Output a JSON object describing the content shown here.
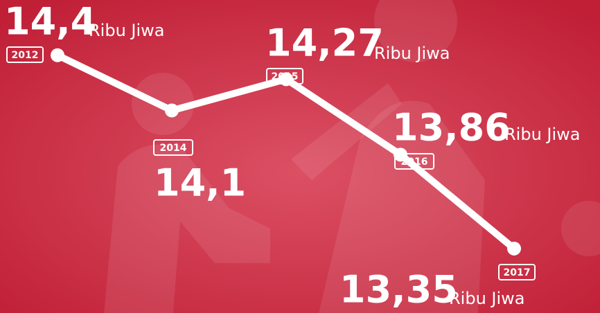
{
  "chart_data": {
    "type": "line",
    "categories": [
      "2012",
      "2014",
      "2015",
      "2016",
      "2017"
    ],
    "values": [
      14.4,
      14.1,
      14.27,
      13.86,
      13.35
    ],
    "value_labels": [
      "14,4",
      "14,1",
      "14,27",
      "13,86",
      "13,35"
    ],
    "unit": "Ribu Jiwa",
    "color": "#ffffff",
    "ylim": [
      13.0,
      14.7
    ]
  }
}
